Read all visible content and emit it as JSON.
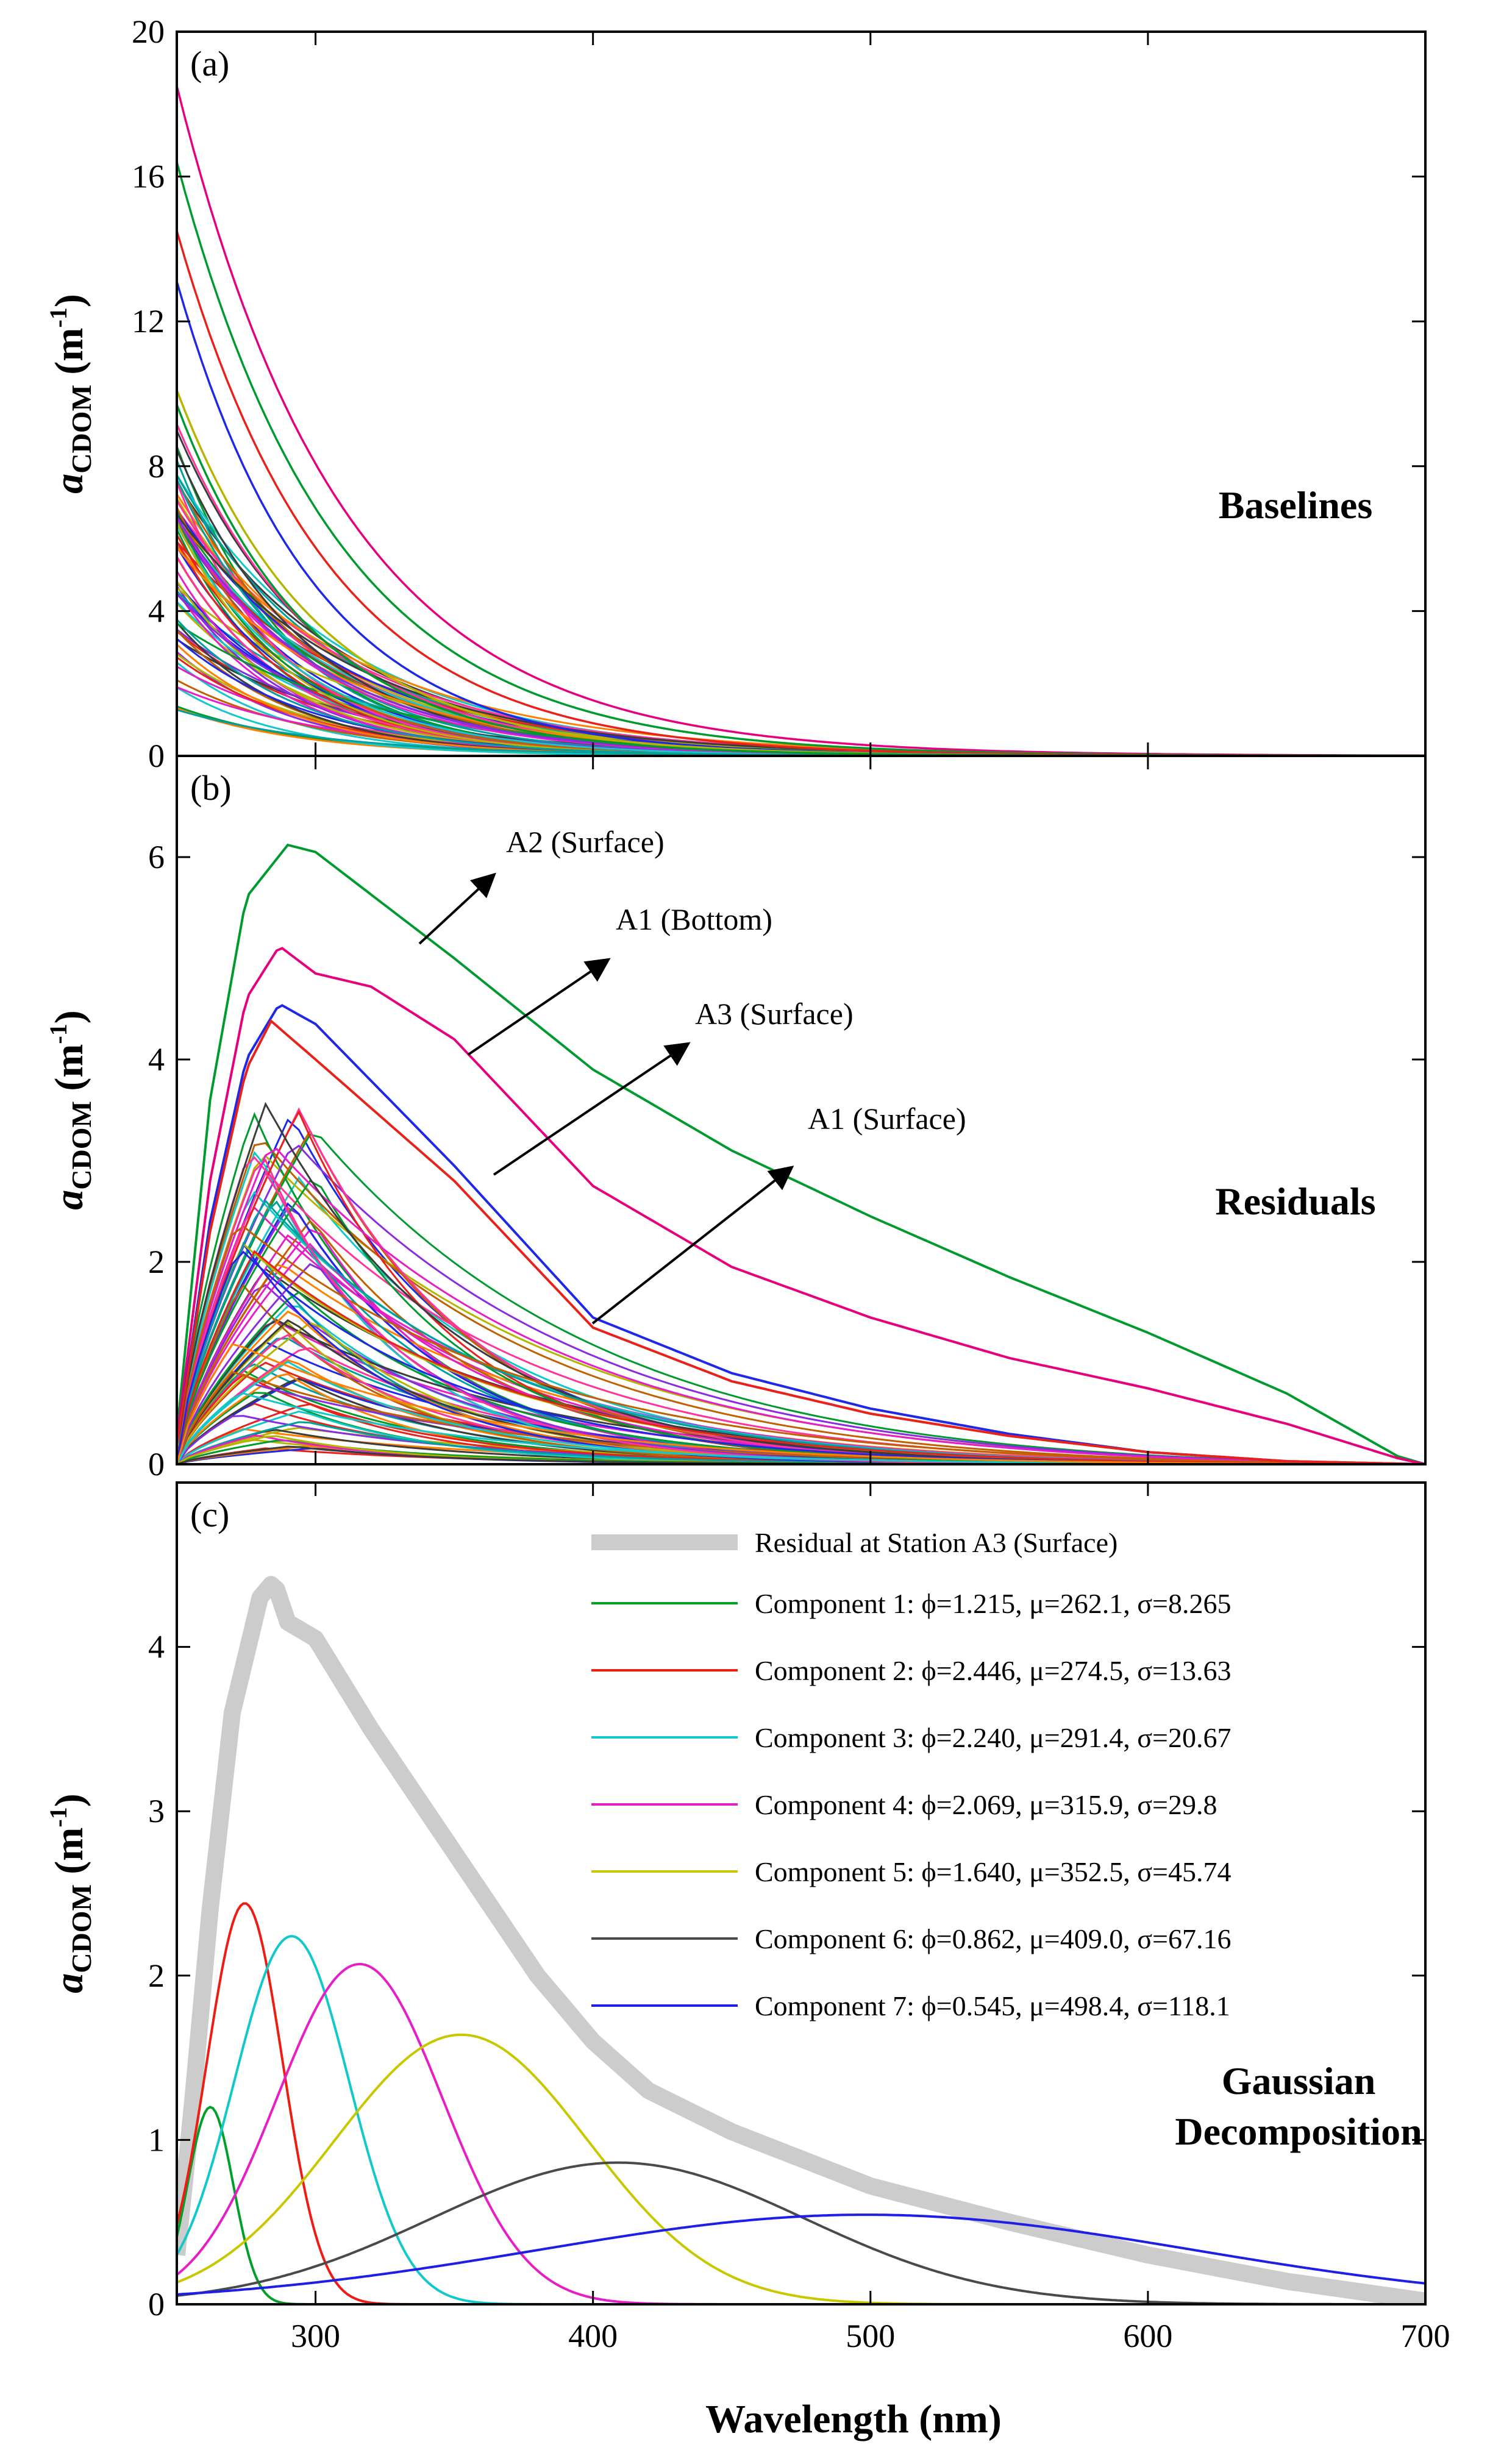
{
  "figure": {
    "xlabel": "Wavelength (nm)",
    "ylabel_main": "a",
    "ylabel_sub": "CDOM",
    "ylabel_unit_pre": " (m",
    "ylabel_unit_exp": "-1",
    "ylabel_unit_post": ")"
  },
  "chart_data": [
    {
      "type": "line",
      "panel": "(a)",
      "title": "Baselines",
      "xlim": [
        250,
        700
      ],
      "ylim": [
        0,
        20
      ],
      "xticks": [
        300,
        400,
        500,
        600,
        700
      ],
      "xtick_labels": [
        "",
        "",
        "",
        "",
        ""
      ],
      "yticks": [
        0,
        4,
        8,
        12,
        16,
        20
      ],
      "ytick_labels": [
        "0",
        "4",
        "8",
        "12",
        "16",
        "20"
      ],
      "family_model": "exponential decay a(λ)=a0·exp(-S·(λ-250))",
      "highlighted_series": [
        {
          "color": "#e6007e",
          "a0": 18.5,
          "S": 0.0166
        },
        {
          "color": "#009a2e",
          "a0": 16.4,
          "S": 0.0175
        },
        {
          "color": "#e8221a",
          "a0": 14.5,
          "S": 0.0185
        },
        {
          "color": "#1e28e6",
          "a0": 13.1,
          "S": 0.0205
        },
        {
          "color": "#b5b500",
          "a0": 10.1,
          "S": 0.02
        },
        {
          "color": "#009a2e",
          "a0": 9.7,
          "S": 0.021
        }
      ],
      "bulk_range_a0": [
        1.2,
        9.2
      ],
      "bulk_count": 70
    },
    {
      "type": "line",
      "panel": "(b)",
      "title": "Residuals",
      "xlim": [
        250,
        700
      ],
      "ylim": [
        0,
        7
      ],
      "xticks": [
        300,
        400,
        500,
        600,
        700
      ],
      "xtick_labels": [
        "",
        "",
        "",
        "",
        ""
      ],
      "yticks": [
        0,
        2,
        4,
        6
      ],
      "ytick_labels": [
        "0",
        "2",
        "4",
        "6"
      ],
      "highlighted_series": [
        {
          "name": "A2 (Surface)",
          "color": "#009a2e",
          "peak_x": 290,
          "peak_y": 6.1,
          "x": [
            250,
            262,
            275,
            290,
            300,
            350,
            400,
            450,
            500,
            550,
            600,
            650,
            690,
            700
          ],
          "y": [
            0.3,
            3.6,
            5.6,
            6.12,
            6.05,
            5.0,
            3.9,
            3.1,
            2.45,
            1.85,
            1.3,
            0.7,
            0.08,
            0.0
          ]
        },
        {
          "name": "A1 (Bottom)",
          "color": "#e6007e",
          "peak_x": 287,
          "peak_y": 5.1,
          "x": [
            250,
            262,
            275,
            287,
            300,
            320,
            350,
            400,
            450,
            500,
            550,
            600,
            650,
            690,
            700
          ],
          "y": [
            0.25,
            2.8,
            4.6,
            5.12,
            4.85,
            4.72,
            4.2,
            2.75,
            1.95,
            1.45,
            1.05,
            0.75,
            0.4,
            0.06,
            0.0
          ]
        },
        {
          "name": "A3 (Surface)",
          "color": "#1e28e6",
          "peak_x": 287,
          "peak_y": 4.55,
          "x": [
            250,
            262,
            275,
            287,
            300,
            350,
            400,
            450,
            500,
            550,
            600,
            650,
            700
          ],
          "y": [
            0.2,
            2.4,
            4.0,
            4.55,
            4.35,
            2.95,
            1.45,
            0.9,
            0.55,
            0.3,
            0.12,
            0.03,
            0.0
          ]
        },
        {
          "name": "A1 (Surface)",
          "color": "#e8221a",
          "peak_x": 284,
          "peak_y": 4.38,
          "x": [
            250,
            262,
            275,
            284,
            300,
            350,
            400,
            450,
            500,
            550,
            600,
            650,
            700
          ],
          "y": [
            0.2,
            2.3,
            3.9,
            4.38,
            4.0,
            2.8,
            1.35,
            0.82,
            0.5,
            0.28,
            0.12,
            0.03,
            0.0
          ]
        }
      ],
      "annotations": [
        "A2 (Surface)",
        "A1 (Bottom)",
        "A3 (Surface)",
        "A1 (Surface)"
      ],
      "bulk_range_peak": [
        0.1,
        3.6
      ],
      "bulk_count": 80
    },
    {
      "type": "line",
      "panel": "(c)",
      "title_line1": "Gaussian",
      "title_line2": "Decomposition",
      "xlim": [
        250,
        700
      ],
      "ylim": [
        0,
        5
      ],
      "xticks": [
        300,
        400,
        500,
        600,
        700
      ],
      "xtick_labels": [
        "300",
        "400",
        "500",
        "600",
        "700"
      ],
      "yticks": [
        0,
        1,
        2,
        3,
        4
      ],
      "ytick_labels": [
        "0",
        "1",
        "2",
        "3",
        "4"
      ],
      "residual": {
        "name": "Residual at Station A3 (Surface)",
        "color": "#cccccc",
        "x": [
          250,
          255,
          262,
          270,
          280,
          285,
          290,
          300,
          320,
          350,
          380,
          400,
          410,
          420,
          450,
          500,
          550,
          600,
          650,
          700
        ],
        "y": [
          0.3,
          1.1,
          2.4,
          3.6,
          4.3,
          4.4,
          4.15,
          4.05,
          3.5,
          2.75,
          2.0,
          1.6,
          1.45,
          1.3,
          1.05,
          0.72,
          0.5,
          0.3,
          0.14,
          0.02
        ]
      },
      "components": [
        {
          "name": "Component 1",
          "phi": "1.215",
          "mu": "262.1",
          "sigma": "8.265",
          "label": "Component 1: ϕ=1.215, μ=262.1, σ=8.265",
          "color": "#00a02a",
          "amp": 1.2,
          "center": 262.1,
          "width": 8.265
        },
        {
          "name": "Component 2",
          "phi": "2.446",
          "mu": "274.5",
          "sigma": "13.63",
          "label": "Component 2: ϕ=2.446, μ=274.5, σ=13.63",
          "color": "#ee1c12",
          "amp": 2.44,
          "center": 274.5,
          "width": 13.63
        },
        {
          "name": "Component 3",
          "phi": "2.240",
          "mu": "291.4",
          "sigma": "20.67",
          "label": "Component 3: ϕ=2.240, μ=291.4, σ=20.67",
          "color": "#12c8c8",
          "amp": 2.24,
          "center": 291.4,
          "width": 20.67
        },
        {
          "name": "Component 4",
          "phi": "2.069",
          "mu": "315.9",
          "sigma": "29.8",
          "label": "Component 4: ϕ=2.069, μ=315.9, σ=29.8",
          "color": "#e61ec8",
          "amp": 2.07,
          "center": 315.9,
          "width": 29.8
        },
        {
          "name": "Component 5",
          "phi": "1.640",
          "mu": "352.5",
          "sigma": "45.74",
          "label": "Component 5: ϕ=1.640, μ=352.5, σ=45.74",
          "color": "#c8c800",
          "amp": 1.64,
          "center": 352.5,
          "width": 45.74
        },
        {
          "name": "Component 6",
          "phi": "0.862",
          "mu": "409.0",
          "sigma": "67.16",
          "label": "Component 6: ϕ=0.862, μ=409.0, σ=67.16",
          "color": "#4a4a4a",
          "amp": 0.862,
          "center": 409.0,
          "width": 67.16
        },
        {
          "name": "Component 7",
          "phi": "0.545",
          "mu": "498.4",
          "sigma": "118.1",
          "label": "Component 7: ϕ=0.545, μ=498.4, σ=118.1",
          "color": "#1e1ee6",
          "amp": 0.545,
          "center": 498.4,
          "width": 118.1
        }
      ]
    }
  ]
}
